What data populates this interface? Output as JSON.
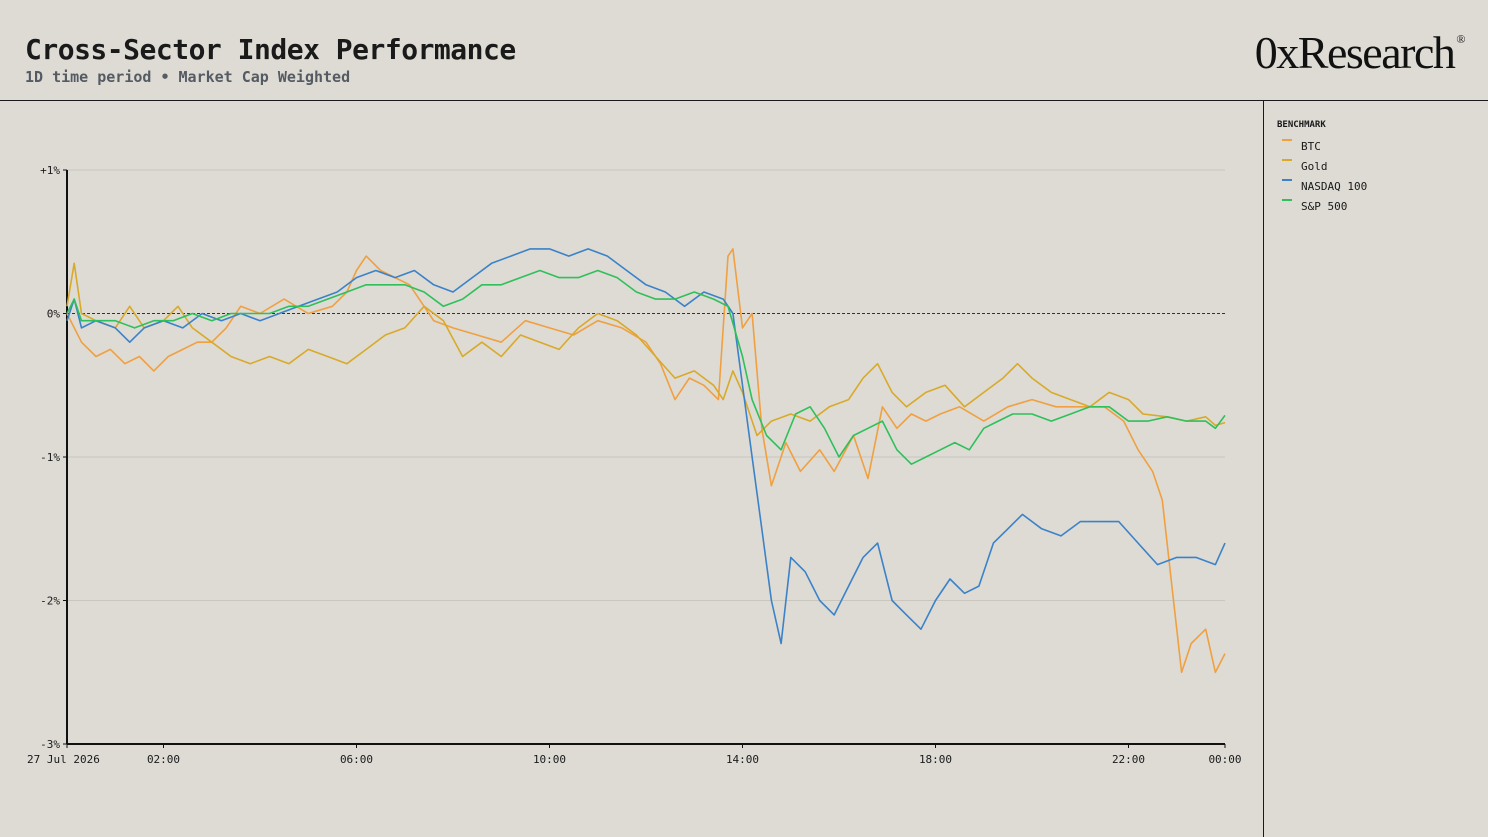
{
  "header": {
    "title": "Cross-Sector Index Performance",
    "subtitle": "1D time period • Market Cap Weighted",
    "brand": "0xResearch",
    "brand_mark": "®"
  },
  "legend": {
    "title": "BENCHMARK",
    "items": [
      {
        "label": "BTC",
        "color": "#f0a040"
      },
      {
        "label": "Gold",
        "color": "#d9a92a"
      },
      {
        "label": "NASDAQ 100",
        "color": "#3b82c9"
      },
      {
        "label": "S&P 500",
        "color": "#2ec05a"
      }
    ]
  },
  "chart_data": {
    "type": "line",
    "title": "Cross-Sector Index Performance",
    "x_unit": "hours since 27 Jul 2026 00:00",
    "xlim": [
      0,
      24
    ],
    "ylim": [
      -3,
      1
    ],
    "y_ticks": [
      {
        "value": 1,
        "label": "+1%"
      },
      {
        "value": 0,
        "label": "0%"
      },
      {
        "value": -1,
        "label": "-1%"
      },
      {
        "value": -2,
        "label": "-2%"
      },
      {
        "value": -3,
        "label": "-3%"
      }
    ],
    "x_ticks": [
      {
        "value": 0,
        "label": "27 Jul 2026"
      },
      {
        "value": 2,
        "label": "02:00"
      },
      {
        "value": 6,
        "label": "06:00"
      },
      {
        "value": 10,
        "label": "10:00"
      },
      {
        "value": 14,
        "label": "14:00"
      },
      {
        "value": 18,
        "label": "18:00"
      },
      {
        "value": 22,
        "label": "22:00"
      },
      {
        "value": 24,
        "label": "00:00"
      }
    ],
    "grid": true,
    "reference_line": 0,
    "legend_position": "right",
    "series": [
      {
        "name": "BTC",
        "color": "#f0a040",
        "points": [
          [
            0,
            0
          ],
          [
            0.3,
            -0.2
          ],
          [
            0.6,
            -0.3
          ],
          [
            0.9,
            -0.25
          ],
          [
            1.2,
            -0.35
          ],
          [
            1.5,
            -0.3
          ],
          [
            1.8,
            -0.4
          ],
          [
            2.1,
            -0.3
          ],
          [
            2.4,
            -0.25
          ],
          [
            2.7,
            -0.2
          ],
          [
            3.0,
            -0.2
          ],
          [
            3.3,
            -0.1
          ],
          [
            3.6,
            0.05
          ],
          [
            4.0,
            0.0
          ],
          [
            4.5,
            0.1
          ],
          [
            5.0,
            0.0
          ],
          [
            5.5,
            0.05
          ],
          [
            5.8,
            0.15
          ],
          [
            6.0,
            0.3
          ],
          [
            6.2,
            0.4
          ],
          [
            6.5,
            0.3
          ],
          [
            6.8,
            0.25
          ],
          [
            7.1,
            0.2
          ],
          [
            7.3,
            0.1
          ],
          [
            7.6,
            -0.05
          ],
          [
            8.0,
            -0.1
          ],
          [
            8.5,
            -0.15
          ],
          [
            9.0,
            -0.2
          ],
          [
            9.5,
            -0.05
          ],
          [
            10.0,
            -0.1
          ],
          [
            10.5,
            -0.15
          ],
          [
            11.0,
            -0.05
          ],
          [
            11.5,
            -0.1
          ],
          [
            12.0,
            -0.2
          ],
          [
            12.3,
            -0.35
          ],
          [
            12.6,
            -0.6
          ],
          [
            12.9,
            -0.45
          ],
          [
            13.2,
            -0.5
          ],
          [
            13.5,
            -0.6
          ],
          [
            13.7,
            0.4
          ],
          [
            13.8,
            0.45
          ],
          [
            14.0,
            -0.1
          ],
          [
            14.2,
            0.0
          ],
          [
            14.4,
            -0.8
          ],
          [
            14.6,
            -1.2
          ],
          [
            14.9,
            -0.9
          ],
          [
            15.2,
            -1.1
          ],
          [
            15.6,
            -0.95
          ],
          [
            15.9,
            -1.1
          ],
          [
            16.3,
            -0.85
          ],
          [
            16.6,
            -1.15
          ],
          [
            16.9,
            -0.65
          ],
          [
            17.2,
            -0.8
          ],
          [
            17.5,
            -0.7
          ],
          [
            17.8,
            -0.75
          ],
          [
            18.1,
            -0.7
          ],
          [
            18.5,
            -0.65
          ],
          [
            19.0,
            -0.75
          ],
          [
            19.5,
            -0.65
          ],
          [
            20.0,
            -0.6
          ],
          [
            20.5,
            -0.65
          ],
          [
            21.0,
            -0.65
          ],
          [
            21.5,
            -0.65
          ],
          [
            21.9,
            -0.75
          ],
          [
            22.2,
            -0.95
          ],
          [
            22.5,
            -1.1
          ],
          [
            22.7,
            -1.3
          ],
          [
            22.9,
            -1.9
          ],
          [
            23.1,
            -2.5
          ],
          [
            23.3,
            -2.3
          ],
          [
            23.6,
            -2.2
          ],
          [
            23.8,
            -2.5
          ],
          [
            24.0,
            -2.37
          ]
        ]
      },
      {
        "name": "Gold",
        "color": "#d9a92a",
        "points": [
          [
            0,
            0.05
          ],
          [
            0.15,
            0.35
          ],
          [
            0.3,
            0.0
          ],
          [
            0.6,
            -0.05
          ],
          [
            1.0,
            -0.1
          ],
          [
            1.3,
            0.05
          ],
          [
            1.6,
            -0.1
          ],
          [
            2.0,
            -0.05
          ],
          [
            2.3,
            0.05
          ],
          [
            2.6,
            -0.1
          ],
          [
            3.0,
            -0.2
          ],
          [
            3.4,
            -0.3
          ],
          [
            3.8,
            -0.35
          ],
          [
            4.2,
            -0.3
          ],
          [
            4.6,
            -0.35
          ],
          [
            5.0,
            -0.25
          ],
          [
            5.4,
            -0.3
          ],
          [
            5.8,
            -0.35
          ],
          [
            6.2,
            -0.25
          ],
          [
            6.6,
            -0.15
          ],
          [
            7.0,
            -0.1
          ],
          [
            7.4,
            0.05
          ],
          [
            7.8,
            -0.05
          ],
          [
            8.2,
            -0.3
          ],
          [
            8.6,
            -0.2
          ],
          [
            9.0,
            -0.3
          ],
          [
            9.4,
            -0.15
          ],
          [
            9.8,
            -0.2
          ],
          [
            10.2,
            -0.25
          ],
          [
            10.6,
            -0.1
          ],
          [
            11.0,
            0.0
          ],
          [
            11.4,
            -0.05
          ],
          [
            11.8,
            -0.15
          ],
          [
            12.2,
            -0.3
          ],
          [
            12.6,
            -0.45
          ],
          [
            13.0,
            -0.4
          ],
          [
            13.4,
            -0.5
          ],
          [
            13.6,
            -0.6
          ],
          [
            13.8,
            -0.4
          ],
          [
            14.0,
            -0.55
          ],
          [
            14.3,
            -0.85
          ],
          [
            14.6,
            -0.75
          ],
          [
            15.0,
            -0.7
          ],
          [
            15.4,
            -0.75
          ],
          [
            15.8,
            -0.65
          ],
          [
            16.2,
            -0.6
          ],
          [
            16.5,
            -0.45
          ],
          [
            16.8,
            -0.35
          ],
          [
            17.1,
            -0.55
          ],
          [
            17.4,
            -0.65
          ],
          [
            17.8,
            -0.55
          ],
          [
            18.2,
            -0.5
          ],
          [
            18.6,
            -0.65
          ],
          [
            19.0,
            -0.55
          ],
          [
            19.4,
            -0.45
          ],
          [
            19.7,
            -0.35
          ],
          [
            20.0,
            -0.45
          ],
          [
            20.4,
            -0.55
          ],
          [
            20.8,
            -0.6
          ],
          [
            21.2,
            -0.65
          ],
          [
            21.6,
            -0.55
          ],
          [
            22.0,
            -0.6
          ],
          [
            22.3,
            -0.7
          ],
          [
            22.8,
            -0.72
          ],
          [
            23.2,
            -0.75
          ],
          [
            23.6,
            -0.72
          ],
          [
            23.8,
            -0.78
          ],
          [
            24.0,
            -0.76
          ]
        ]
      },
      {
        "name": "NASDAQ 100",
        "color": "#3b82c9",
        "points": [
          [
            0,
            -0.05
          ],
          [
            0.15,
            0.1
          ],
          [
            0.3,
            -0.1
          ],
          [
            0.6,
            -0.05
          ],
          [
            1.0,
            -0.1
          ],
          [
            1.3,
            -0.2
          ],
          [
            1.6,
            -0.1
          ],
          [
            2.0,
            -0.05
          ],
          [
            2.4,
            -0.1
          ],
          [
            2.8,
            0.0
          ],
          [
            3.2,
            -0.05
          ],
          [
            3.6,
            0.0
          ],
          [
            4.0,
            -0.05
          ],
          [
            4.4,
            0.0
          ],
          [
            4.8,
            0.05
          ],
          [
            5.2,
            0.1
          ],
          [
            5.6,
            0.15
          ],
          [
            6.0,
            0.25
          ],
          [
            6.4,
            0.3
          ],
          [
            6.8,
            0.25
          ],
          [
            7.2,
            0.3
          ],
          [
            7.6,
            0.2
          ],
          [
            8.0,
            0.15
          ],
          [
            8.4,
            0.25
          ],
          [
            8.8,
            0.35
          ],
          [
            9.2,
            0.4
          ],
          [
            9.6,
            0.45
          ],
          [
            10.0,
            0.45
          ],
          [
            10.4,
            0.4
          ],
          [
            10.8,
            0.45
          ],
          [
            11.2,
            0.4
          ],
          [
            11.6,
            0.3
          ],
          [
            12.0,
            0.2
          ],
          [
            12.4,
            0.15
          ],
          [
            12.8,
            0.05
          ],
          [
            13.2,
            0.15
          ],
          [
            13.6,
            0.1
          ],
          [
            13.8,
            0.0
          ],
          [
            14.0,
            -0.5
          ],
          [
            14.2,
            -1.0
          ],
          [
            14.4,
            -1.5
          ],
          [
            14.6,
            -2.0
          ],
          [
            14.8,
            -2.3
          ],
          [
            15.0,
            -1.7
          ],
          [
            15.3,
            -1.8
          ],
          [
            15.6,
            -2.0
          ],
          [
            15.9,
            -2.1
          ],
          [
            16.2,
            -1.9
          ],
          [
            16.5,
            -1.7
          ],
          [
            16.8,
            -1.6
          ],
          [
            17.1,
            -2.0
          ],
          [
            17.4,
            -2.1
          ],
          [
            17.7,
            -2.2
          ],
          [
            18.0,
            -2.0
          ],
          [
            18.3,
            -1.85
          ],
          [
            18.6,
            -1.95
          ],
          [
            18.9,
            -1.9
          ],
          [
            19.2,
            -1.6
          ],
          [
            19.5,
            -1.5
          ],
          [
            19.8,
            -1.4
          ],
          [
            20.2,
            -1.5
          ],
          [
            20.6,
            -1.55
          ],
          [
            21.0,
            -1.45
          ],
          [
            21.4,
            -1.45
          ],
          [
            21.8,
            -1.45
          ],
          [
            22.2,
            -1.6
          ],
          [
            22.6,
            -1.75
          ],
          [
            23.0,
            -1.7
          ],
          [
            23.4,
            -1.7
          ],
          [
            23.8,
            -1.75
          ],
          [
            24.0,
            -1.6
          ]
        ]
      },
      {
        "name": "S&P 500",
        "color": "#2ec05a",
        "points": [
          [
            0,
            0.0
          ],
          [
            0.15,
            0.1
          ],
          [
            0.3,
            -0.05
          ],
          [
            0.6,
            -0.05
          ],
          [
            1.0,
            -0.05
          ],
          [
            1.4,
            -0.1
          ],
          [
            1.8,
            -0.05
          ],
          [
            2.2,
            -0.05
          ],
          [
            2.6,
            0.0
          ],
          [
            3.0,
            -0.05
          ],
          [
            3.4,
            0.0
          ],
          [
            3.8,
            0.0
          ],
          [
            4.2,
            0.0
          ],
          [
            4.6,
            0.05
          ],
          [
            5.0,
            0.05
          ],
          [
            5.4,
            0.1
          ],
          [
            5.8,
            0.15
          ],
          [
            6.2,
            0.2
          ],
          [
            6.6,
            0.2
          ],
          [
            7.0,
            0.2
          ],
          [
            7.4,
            0.15
          ],
          [
            7.8,
            0.05
          ],
          [
            8.2,
            0.1
          ],
          [
            8.6,
            0.2
          ],
          [
            9.0,
            0.2
          ],
          [
            9.4,
            0.25
          ],
          [
            9.8,
            0.3
          ],
          [
            10.2,
            0.25
          ],
          [
            10.6,
            0.25
          ],
          [
            11.0,
            0.3
          ],
          [
            11.4,
            0.25
          ],
          [
            11.8,
            0.15
          ],
          [
            12.2,
            0.1
          ],
          [
            12.6,
            0.1
          ],
          [
            13.0,
            0.15
          ],
          [
            13.4,
            0.1
          ],
          [
            13.7,
            0.05
          ],
          [
            14.0,
            -0.3
          ],
          [
            14.2,
            -0.6
          ],
          [
            14.5,
            -0.85
          ],
          [
            14.8,
            -0.95
          ],
          [
            15.1,
            -0.7
          ],
          [
            15.4,
            -0.65
          ],
          [
            15.7,
            -0.8
          ],
          [
            16.0,
            -1.0
          ],
          [
            16.3,
            -0.85
          ],
          [
            16.6,
            -0.8
          ],
          [
            16.9,
            -0.75
          ],
          [
            17.2,
            -0.95
          ],
          [
            17.5,
            -1.05
          ],
          [
            17.8,
            -1.0
          ],
          [
            18.1,
            -0.95
          ],
          [
            18.4,
            -0.9
          ],
          [
            18.7,
            -0.95
          ],
          [
            19.0,
            -0.8
          ],
          [
            19.3,
            -0.75
          ],
          [
            19.6,
            -0.7
          ],
          [
            20.0,
            -0.7
          ],
          [
            20.4,
            -0.75
          ],
          [
            20.8,
            -0.7
          ],
          [
            21.2,
            -0.65
          ],
          [
            21.6,
            -0.65
          ],
          [
            22.0,
            -0.75
          ],
          [
            22.4,
            -0.75
          ],
          [
            22.8,
            -0.72
          ],
          [
            23.2,
            -0.75
          ],
          [
            23.6,
            -0.75
          ],
          [
            23.8,
            -0.8
          ],
          [
            24.0,
            -0.71
          ]
        ]
      }
    ]
  }
}
